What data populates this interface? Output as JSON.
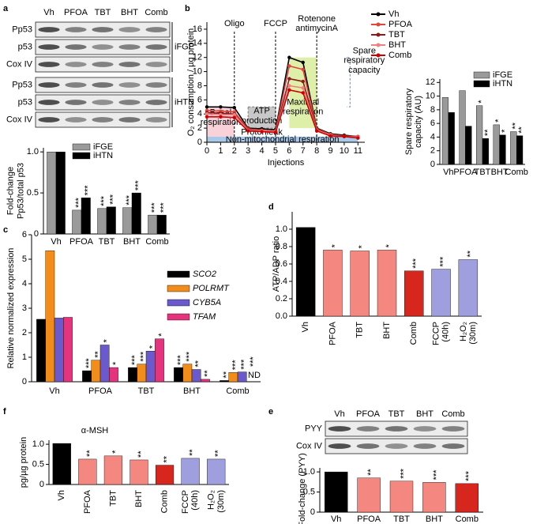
{
  "blots": [
    {
      "lanes": [
        "Vh",
        "PFOA",
        "TBT",
        "BHT",
        "Comb"
      ],
      "groups": [
        {
          "name": "iFGE",
          "rows": [
            "Pp53",
            "p53",
            "Cox IV"
          ]
        },
        {
          "name": "iHTN",
          "rows": [
            "Pp53",
            "p53",
            "Cox IV"
          ]
        }
      ]
    },
    {
      "lanes": [
        "Vh",
        "PFOA",
        "TBT",
        "BHT",
        "Comb"
      ],
      "groups": [
        {
          "rows": [
            "PYY",
            "Cox IV"
          ]
        }
      ]
    }
  ],
  "chart_data": [
    {
      "type": "bar",
      "panel": "a",
      "ylabel": [
        "Fold-change",
        "Pp53/total p53"
      ],
      "categories": [
        "Vh",
        "PFOA",
        "TBT",
        "BHT",
        "Comb"
      ],
      "ylim": [
        0,
        1.05
      ],
      "yticks": [
        0,
        0.5,
        {
          "value": 1,
          "label": "1.0"
        }
      ],
      "series": [
        {
          "name": "iFGE",
          "color": "#9a9a9a",
          "values": [
            1.0,
            0.29,
            0.31,
            0.32,
            0.23
          ],
          "significance": [
            null,
            "***",
            "***",
            "***",
            "***"
          ]
        },
        {
          "name": "iHTN",
          "color": "#000000",
          "values": [
            1.0,
            0.44,
            0.33,
            0.5,
            0.23
          ],
          "significance": [
            null,
            "***",
            "***",
            "***",
            "***"
          ]
        }
      ]
    },
    {
      "type": "line",
      "panel": "b",
      "xlabel": "Injections",
      "ylabel": "O₂ consumption / µg protein",
      "x": [
        0,
        1,
        2,
        3,
        4,
        5,
        6,
        7,
        8,
        9,
        10,
        11
      ],
      "xlim": [
        0,
        11.5
      ],
      "xticks": [
        0,
        1,
        2,
        3,
        4,
        5,
        6,
        7,
        8,
        9,
        10,
        11
      ],
      "ylim": [
        0,
        17
      ],
      "yticks": [
        0,
        2,
        4,
        6,
        8,
        10,
        12,
        14,
        16
      ],
      "series": [
        {
          "name": "Vh",
          "color": "#000000",
          "values": [
            5.0,
            5.0,
            4.9,
            2.0,
            1.9,
            1.8,
            12.0,
            11.3,
            2.0,
            1.2,
            1.0,
            0.8
          ]
        },
        {
          "name": "PFOA",
          "color": "#e0443a",
          "values": [
            4.5,
            4.4,
            4.3,
            1.9,
            1.7,
            1.6,
            10.8,
            10.3,
            1.9,
            1.1,
            0.9,
            0.8
          ]
        },
        {
          "name": "TBT",
          "color": "#8b1a1a",
          "values": [
            4.2,
            4.1,
            4.0,
            1.8,
            1.6,
            1.5,
            9.0,
            8.6,
            1.8,
            1.0,
            0.9,
            0.7
          ]
        },
        {
          "name": "BHT",
          "color": "#f08080",
          "values": [
            4.0,
            3.9,
            3.9,
            1.7,
            1.6,
            1.5,
            8.0,
            7.7,
            1.7,
            1.0,
            0.8,
            0.7
          ]
        },
        {
          "name": "Comb",
          "color": "#cc0000",
          "values": [
            3.6,
            3.6,
            3.5,
            1.6,
            1.5,
            1.4,
            7.4,
            7.0,
            1.6,
            0.9,
            0.8,
            0.6
          ]
        }
      ],
      "injections": [
        {
          "label": "Oligo",
          "x": 2
        },
        {
          "label": "FCCP",
          "x": 5
        },
        {
          "label": "Rotenone antimycinA",
          "x": 8
        }
      ],
      "regions": {
        "basal": "Basal respiration",
        "atp": "ATP production",
        "proton_leak": "Protonleak",
        "maximal": "Maximal respiration",
        "non_mito": "Non-mitochondrial respiration",
        "spare": "Spare respiratory capacity"
      }
    },
    {
      "type": "bar",
      "ylabel": [
        "Spare respiratory",
        "capacity (AU)"
      ],
      "categories": [
        "Vh",
        "PFOA",
        "TBT",
        "BHT",
        "Comb"
      ],
      "ylim": [
        0,
        12.5
      ],
      "yticks": [
        0,
        2,
        4,
        6,
        8,
        10,
        12
      ],
      "series": [
        {
          "name": "iFGE",
          "color": "#9a9a9a",
          "values": [
            9.8,
            10.8,
            8.6,
            5.8,
            4.8
          ],
          "significance": [
            null,
            null,
            "*",
            "*",
            "**"
          ]
        },
        {
          "name": "iHTN",
          "color": "#000000",
          "values": [
            7.6,
            5.6,
            3.8,
            4.3,
            4.2
          ],
          "significance": [
            null,
            null,
            "**",
            "*",
            "**"
          ]
        }
      ]
    },
    {
      "type": "bar",
      "panel": "c",
      "ylabel": "Relative normalized expression",
      "categories": [
        "Vh",
        "PFOA",
        "TBT",
        "BHT",
        "Comb"
      ],
      "ylim": [
        0,
        6
      ],
      "yticks": [
        0,
        1,
        2,
        3,
        4,
        5,
        6
      ],
      "nd_label": "ND",
      "series": [
        {
          "name": "SCO2",
          "color": "#000000",
          "values": [
            2.55,
            0.45,
            0.58,
            0.58,
            0.05
          ],
          "significance": [
            null,
            "***",
            "***",
            "***",
            "**"
          ]
        },
        {
          "name": "POLRMT",
          "color": "#f28c1b",
          "values": [
            5.35,
            0.88,
            0.72,
            0.72,
            0.38
          ],
          "significance": [
            null,
            "**",
            "***",
            "***",
            "***"
          ]
        },
        {
          "name": "CYB5A",
          "color": "#6a5acd",
          "values": [
            2.6,
            1.5,
            1.25,
            0.5,
            0.4
          ],
          "significance": [
            null,
            "*",
            "*",
            "**",
            "***"
          ]
        },
        {
          "name": "TFAM",
          "color": "#e5337d",
          "values": [
            2.63,
            0.58,
            1.75,
            0.1,
            null
          ],
          "significance": [
            null,
            "*",
            "*",
            "**",
            "***"
          ]
        }
      ]
    },
    {
      "type": "bar",
      "panel": "d",
      "ylabel": "ATP/ADP ratio",
      "categories": [
        "Vh",
        "PFOA",
        "TBT",
        "BHT",
        "Comb",
        "FCCP (40h)",
        "H₂O₂ (30m)"
      ],
      "ylim": [
        0,
        1.2
      ],
      "yticks": [
        {
          "value": 0,
          "label": "0.0"
        },
        0.2,
        0.4,
        0.6,
        0.8,
        {
          "value": 1,
          "label": "1.0"
        }
      ],
      "values": [
        1.02,
        0.76,
        0.75,
        0.76,
        0.52,
        0.54,
        0.65
      ],
      "colors": [
        "#000000",
        "#f4877f",
        "#f4877f",
        "#f4877f",
        "#d7261e",
        "#9f9fdf",
        "#9f9fdf"
      ],
      "significance": [
        null,
        "*",
        "*",
        "*",
        "***",
        "***",
        "**"
      ]
    },
    {
      "type": "bar",
      "panel": "e",
      "ylabel": "Fold-change (PYY)",
      "categories": [
        "Vh",
        "PFOA",
        "TBT",
        "BHT",
        "Comb"
      ],
      "ylim": [
        0,
        1.1
      ],
      "yticks": [
        0,
        0.5,
        {
          "value": 1,
          "label": "1.0"
        }
      ],
      "values": [
        1.0,
        0.85,
        0.77,
        0.74,
        0.71
      ],
      "colors": [
        "#000000",
        "#f4877f",
        "#f4877f",
        "#f4877f",
        "#d7261e"
      ],
      "significance": [
        null,
        "**",
        "***",
        "***",
        "***"
      ]
    },
    {
      "type": "bar",
      "panel": "f",
      "title": "α-MSH",
      "ylabel": "pg/µg protein",
      "categories": [
        "Vh",
        "PFOA",
        "TBT",
        "BHT",
        "Comb",
        "FCCP (40h)",
        "H₂O₂ (30m)"
      ],
      "ylim": [
        0,
        1.1
      ],
      "yticks": [
        0,
        0.5,
        {
          "value": 1,
          "label": "1.0"
        }
      ],
      "values": [
        1.02,
        0.63,
        0.71,
        0.61,
        0.48,
        0.65,
        0.63
      ],
      "colors": [
        "#000000",
        "#f4877f",
        "#f4877f",
        "#f4877f",
        "#d7261e",
        "#9f9fdf",
        "#9f9fdf"
      ],
      "significance": [
        null,
        "**",
        "*",
        "**",
        "**",
        "**",
        "**"
      ]
    }
  ]
}
